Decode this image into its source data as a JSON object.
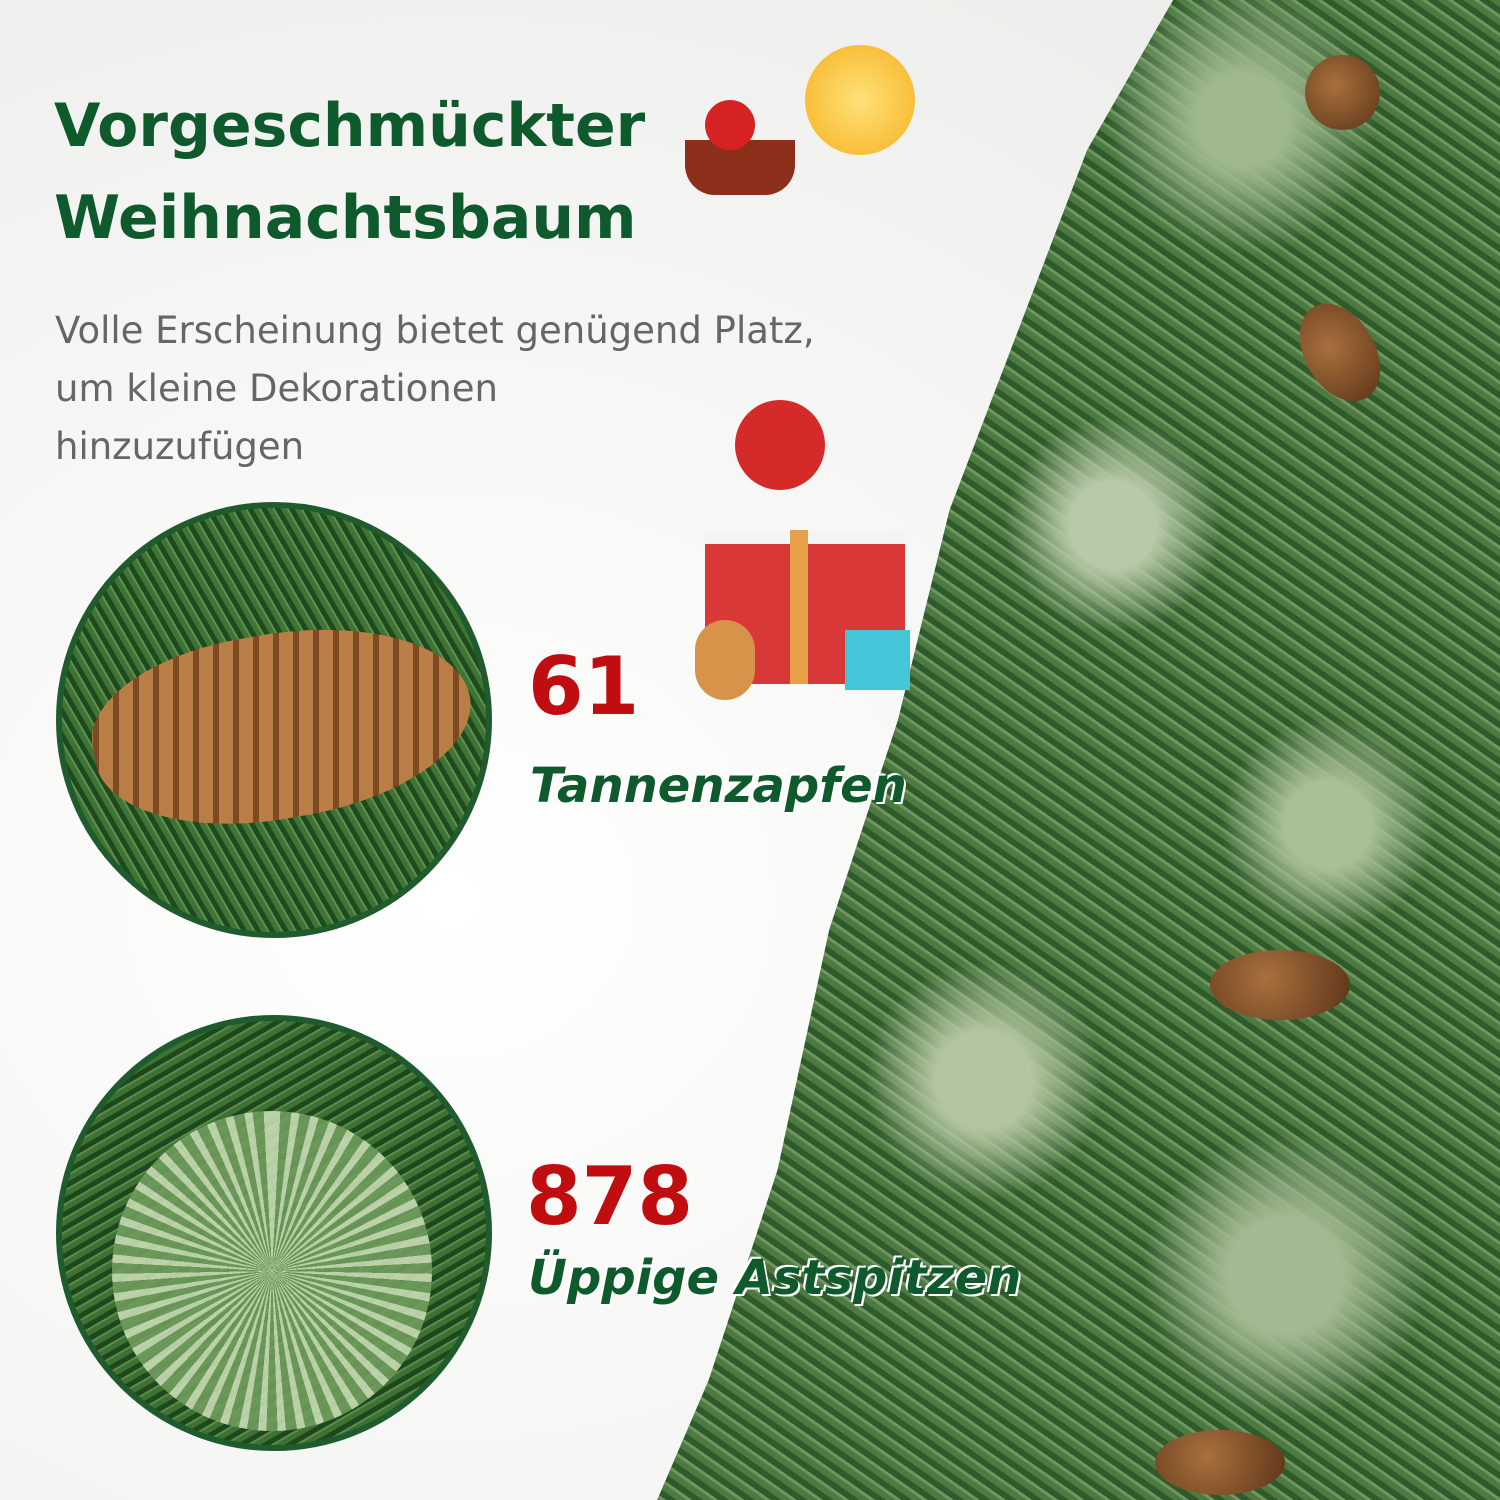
{
  "title": {
    "line1": "Vorgeschmückter",
    "line2": "Weihnachtsbaum"
  },
  "subtitle": {
    "line1": "Volle Erscheinung bietet genügend Platz,",
    "line2": "um kleine Dekorationen",
    "line3": "hinzuzufügen"
  },
  "features": [
    {
      "number": "61",
      "label": "Tannenzapfen"
    },
    {
      "number": "878",
      "label": "Üppige Astspitzen"
    }
  ],
  "colors": {
    "title": "#0f5a2c",
    "number": "#c00d10",
    "border": "#1f5b2c"
  }
}
